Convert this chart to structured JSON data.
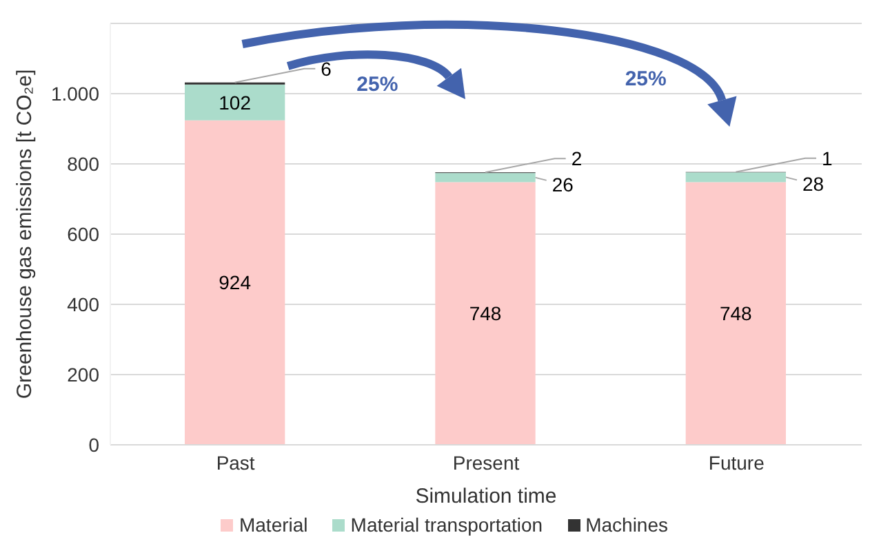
{
  "chart_data": {
    "type": "bar",
    "stacked": true,
    "xlabel": "Simulation time",
    "ylabel": "Greenhouse gas emissions [t CO₂e]",
    "categories": [
      "Past",
      "Present",
      "Future"
    ],
    "series": [
      {
        "name": "Material",
        "color": "#fdcbca",
        "values": [
          924,
          748,
          748
        ]
      },
      {
        "name": "Material transportation",
        "color": "#abdccb",
        "values": [
          102,
          26,
          28
        ]
      },
      {
        "name": "Machines",
        "color": "#333333",
        "values": [
          6,
          2,
          1
        ]
      }
    ],
    "ylim": [
      0,
      1200
    ],
    "yticks": [
      0,
      200,
      400,
      600,
      800,
      {
        "value": 1000,
        "label": "1.000"
      }
    ],
    "grid": "y",
    "legend": "bottom",
    "data_labels": true,
    "annotations": [
      "25%",
      "25%"
    ]
  }
}
